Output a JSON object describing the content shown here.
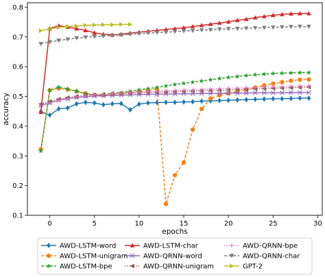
{
  "chart_data": {
    "type": "line",
    "title": "",
    "xlabel": "epochs",
    "ylabel": "accuracy",
    "xlim": [
      -2.5,
      30.5
    ],
    "ylim": [
      0.1,
      0.815
    ],
    "x_ticks": [
      0,
      5,
      10,
      15,
      20,
      25,
      30
    ],
    "y_ticks": [
      0.1,
      0.2,
      0.3,
      0.4,
      0.5,
      0.6,
      0.7,
      0.8
    ],
    "grid": false,
    "legend_position": "below-plot",
    "series": [
      {
        "name": "AWD-LSTM-word",
        "color": "#1f77b4",
        "linestyle": "solid",
        "marker": "diamond",
        "x": [
          -1,
          0,
          1,
          2,
          3,
          4,
          5,
          6,
          7,
          8,
          9,
          10,
          11,
          12,
          13,
          14,
          15,
          16,
          17,
          18,
          19,
          20,
          21,
          22,
          23,
          24,
          25,
          26,
          27,
          28,
          29
        ],
        "y": [
          0.449,
          0.437,
          0.458,
          0.461,
          0.475,
          0.48,
          0.478,
          0.472,
          0.475,
          0.476,
          0.455,
          0.474,
          0.478,
          0.479,
          0.48,
          0.48,
          0.481,
          0.482,
          0.484,
          0.485,
          0.486,
          0.487,
          0.488,
          0.489,
          0.49,
          0.491,
          0.492,
          0.492,
          0.493,
          0.494,
          0.494
        ]
      },
      {
        "name": "AWD-LSTM-unigram",
        "color": "#ff7f0e",
        "linestyle": "dashed",
        "marker": "circle",
        "x": [
          -1,
          0,
          1,
          2,
          3,
          4,
          5,
          6,
          7,
          8,
          9,
          10,
          11,
          12,
          13,
          14,
          15,
          16,
          17,
          18,
          19,
          20,
          21,
          22,
          23,
          24,
          25,
          26,
          27,
          28,
          29
        ],
        "y": [
          0.322,
          0.521,
          0.527,
          0.523,
          0.517,
          0.51,
          0.505,
          0.504,
          0.507,
          0.509,
          0.512,
          0.517,
          0.52,
          0.525,
          0.138,
          0.235,
          0.278,
          0.388,
          0.458,
          0.493,
          0.504,
          0.51,
          0.517,
          0.523,
          0.53,
          0.537,
          0.543,
          0.548,
          0.553,
          0.556,
          0.557
        ]
      },
      {
        "name": "AWD-LSTM-bpe",
        "color": "#2ca02c",
        "linestyle": "dashed",
        "marker": "star",
        "x": [
          -1,
          0,
          1,
          2,
          3,
          4,
          5,
          6,
          7,
          8,
          9,
          10,
          11,
          12,
          13,
          14,
          15,
          16,
          17,
          18,
          19,
          20,
          21,
          22,
          23,
          24,
          25,
          26,
          27,
          28,
          29
        ],
        "y": [
          0.316,
          0.52,
          0.531,
          0.525,
          0.517,
          0.509,
          0.505,
          0.506,
          0.51,
          0.513,
          0.517,
          0.522,
          0.526,
          0.53,
          0.535,
          0.54,
          0.544,
          0.548,
          0.552,
          0.556,
          0.56,
          0.564,
          0.567,
          0.57,
          0.573,
          0.575,
          0.577,
          0.578,
          0.579,
          0.58,
          0.58
        ]
      },
      {
        "name": "AWD-QRNN-word",
        "color": "#9467bd",
        "linestyle": "solid",
        "marker": "x",
        "x": [
          -1,
          0,
          1,
          2,
          3,
          4,
          5,
          6,
          7,
          8,
          9,
          10,
          11,
          12,
          13,
          14,
          15,
          16,
          17,
          18,
          19,
          20,
          21,
          22,
          23,
          24,
          25,
          26,
          27,
          28,
          29
        ],
        "y": [
          0.47,
          0.478,
          0.487,
          0.492,
          0.496,
          0.499,
          0.501,
          0.502,
          0.503,
          0.504,
          0.505,
          0.506,
          0.507,
          0.507,
          0.508,
          0.508,
          0.509,
          0.509,
          0.51,
          0.51,
          0.51,
          0.511,
          0.511,
          0.511,
          0.512,
          0.512,
          0.512,
          0.512,
          0.513,
          0.513,
          0.513
        ]
      },
      {
        "name": "AWD-QRNN-unigram",
        "color": "#8c564b",
        "linestyle": "dotted",
        "marker": "triangle-left",
        "x": [
          -1,
          0,
          1,
          2,
          3,
          4,
          5,
          6,
          7,
          8,
          9,
          10,
          11,
          12,
          13,
          14,
          15,
          16,
          17,
          18,
          19,
          20,
          21,
          22,
          23,
          24,
          25,
          26,
          27,
          28,
          29
        ],
        "y": [
          0.474,
          0.483,
          0.491,
          0.496,
          0.5,
          0.503,
          0.505,
          0.507,
          0.509,
          0.51,
          0.511,
          0.512,
          0.513,
          0.514,
          0.515,
          0.516,
          0.517,
          0.518,
          0.519,
          0.52,
          0.521,
          0.522,
          0.523,
          0.524,
          0.525,
          0.526,
          0.527,
          0.528,
          0.529,
          0.53,
          0.531
        ]
      },
      {
        "name": "AWD-QRNN-bpe",
        "color": "#e377c2",
        "linestyle": "dotted",
        "marker": "plus",
        "x": [
          -1,
          0,
          1,
          2,
          3,
          4,
          5,
          6,
          7,
          8,
          9,
          10,
          11,
          12,
          13,
          14,
          15,
          16,
          17,
          18,
          19,
          20,
          21,
          22,
          23,
          24,
          25,
          26,
          27,
          28,
          29
        ],
        "y": [
          0.468,
          0.478,
          0.487,
          0.493,
          0.498,
          0.502,
          0.505,
          0.507,
          0.509,
          0.511,
          0.513,
          0.514,
          0.516,
          0.517,
          0.519,
          0.52,
          0.521,
          0.522,
          0.524,
          0.525,
          0.526,
          0.527,
          0.528,
          0.529,
          0.53,
          0.531,
          0.532,
          0.533,
          0.534,
          0.535,
          0.536
        ]
      },
      {
        "name": "AWD-LSTM-char",
        "color": "#d62728",
        "linestyle": "solid",
        "marker": "triangle-up",
        "x": [
          -1,
          0,
          1,
          2,
          3,
          4,
          5,
          6,
          7,
          8,
          9,
          10,
          11,
          12,
          13,
          14,
          15,
          16,
          17,
          18,
          19,
          20,
          21,
          22,
          23,
          24,
          25,
          26,
          27,
          28,
          29
        ],
        "y": [
          0.447,
          0.728,
          0.738,
          0.733,
          0.728,
          0.722,
          0.714,
          0.709,
          0.707,
          0.709,
          0.713,
          0.716,
          0.719,
          0.722,
          0.725,
          0.728,
          0.731,
          0.735,
          0.739,
          0.743,
          0.747,
          0.751,
          0.756,
          0.76,
          0.765,
          0.769,
          0.773,
          0.776,
          0.778,
          0.779,
          0.779
        ]
      },
      {
        "name": "AWD-QRNN-char",
        "color": "#7f7f7f",
        "linestyle": "dashed",
        "marker": "triangle-down",
        "x": [
          -1,
          0,
          1,
          2,
          3,
          4,
          5,
          6,
          7,
          8,
          9,
          10,
          11,
          12,
          13,
          14,
          15,
          16,
          17,
          18,
          19,
          20,
          21,
          22,
          23,
          24,
          25,
          26,
          27,
          28,
          29
        ],
        "y": [
          0.677,
          0.683,
          0.688,
          0.692,
          0.696,
          0.699,
          0.701,
          0.703,
          0.705,
          0.707,
          0.709,
          0.711,
          0.713,
          0.715,
          0.716,
          0.718,
          0.72,
          0.721,
          0.723,
          0.724,
          0.726,
          0.727,
          0.728,
          0.729,
          0.73,
          0.731,
          0.732,
          0.733,
          0.734,
          0.735,
          0.735
        ]
      },
      {
        "name": "GPT-2",
        "color": "#bcbd22",
        "linestyle": "solid",
        "marker": "triangle-right",
        "x": [
          -1,
          0,
          1,
          2,
          3,
          4,
          5,
          6,
          7,
          8,
          9
        ],
        "y": [
          0.721,
          0.727,
          0.732,
          0.735,
          0.737,
          0.739,
          0.74,
          0.741,
          0.741,
          0.742,
          0.742
        ]
      }
    ],
    "legend_order": [
      "AWD-LSTM-word",
      "AWD-LSTM-char",
      "AWD-QRNN-bpe",
      "AWD-LSTM-unigram",
      "AWD-QRNN-word",
      "AWD-QRNN-char",
      "AWD-LSTM-bpe",
      "AWD-QRNN-unigram",
      "GPT-2"
    ]
  }
}
